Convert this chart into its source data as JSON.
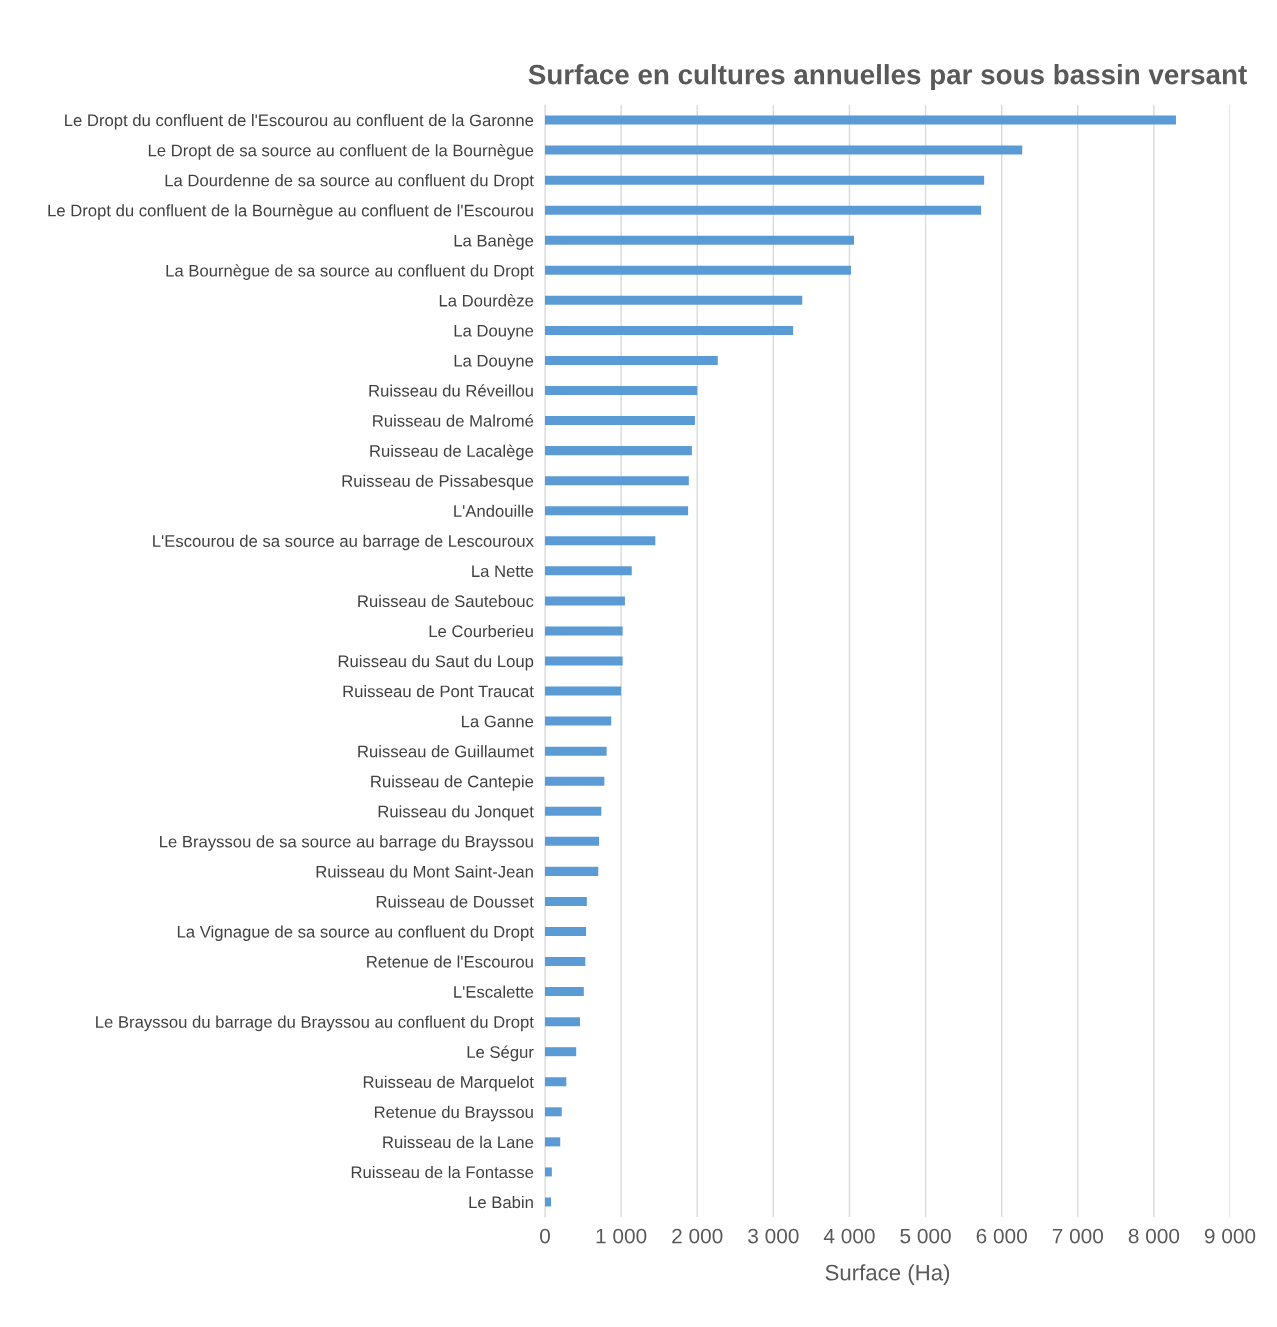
{
  "chart_data": {
    "type": "bar",
    "orientation": "horizontal",
    "title": "Surface en cultures annuelles par sous bassin versant",
    "xlabel": "Surface (Ha)",
    "categories": [
      "Le Dropt du confluent de l'Escourou au confluent de la Garonne",
      "Le Dropt de sa source au confluent de la Bournègue",
      "La Dourdenne de sa source au confluent du Dropt",
      "Le Dropt du confluent de la Bournègue au confluent de l'Escourou",
      "La Banège",
      "La Bournègue de sa source au confluent du Dropt",
      "La Dourdèze",
      "La Douyne",
      "La Douyne",
      "Ruisseau du Réveillou",
      "Ruisseau de Malromé",
      "Ruisseau de Lacalège",
      "Ruisseau de Pissabesque",
      "L'Andouille",
      "L'Escourou de sa source au barrage de Lescouroux",
      "La Nette",
      "Ruisseau de Sautebouc",
      "Le Courberieu",
      "Ruisseau du Saut du Loup",
      "Ruisseau de Pont Traucat",
      "La Ganne",
      "Ruisseau de Guillaumet",
      "Ruisseau de Cantepie",
      "Ruisseau du Jonquet",
      "Le Brayssou de sa source au barrage du Brayssou",
      "Ruisseau du Mont Saint-Jean",
      "Ruisseau de Dousset",
      "La Vignague de sa source au confluent du Dropt",
      "Retenue de l'Escourou",
      "L'Escalette",
      "Le Brayssou du barrage du Brayssou au confluent du Dropt",
      "Le Ségur",
      "Ruisseau de Marquelot",
      "Retenue du Brayssou",
      "Ruisseau de la Lane",
      "Ruisseau de la Fontasse",
      "Le Babin"
    ],
    "values": [
      8290,
      6270,
      5770,
      5730,
      4060,
      4020,
      3380,
      3260,
      2270,
      2000,
      1970,
      1930,
      1890,
      1880,
      1450,
      1140,
      1050,
      1020,
      1020,
      1000,
      870,
      810,
      780,
      740,
      710,
      700,
      550,
      540,
      530,
      510,
      460,
      410,
      280,
      220,
      200,
      90,
      80
    ],
    "color": "#5b9bd5",
    "xlim": [
      0,
      9000
    ],
    "xticks": [
      0,
      {
        "value": 1000,
        "label": "1 000"
      },
      {
        "value": 2000,
        "label": "2 000"
      },
      {
        "value": 3000,
        "label": "3 000"
      },
      {
        "value": 4000,
        "label": "4 000"
      },
      {
        "value": 5000,
        "label": "5 000"
      },
      {
        "value": 6000,
        "label": "6 000"
      },
      {
        "value": 7000,
        "label": "7 000"
      },
      {
        "value": 8000,
        "label": "8 000"
      },
      {
        "value": 9000,
        "label": "9 000"
      }
    ],
    "grid": "x",
    "legend": false
  }
}
